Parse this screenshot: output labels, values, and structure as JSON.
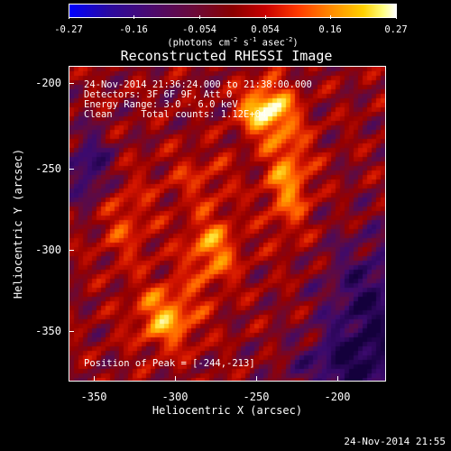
{
  "colorbar": {
    "ticks": [
      "-0.27",
      "-0.16",
      "-0.054",
      "0.054",
      "0.16",
      "0.27"
    ],
    "units_prefix": "(photons cm",
    "units_exp1": "-2",
    "units_mid": " s",
    "units_exp2": "-1",
    "units_mid2": " asec",
    "units_exp3": "-2",
    "units_suffix": ")"
  },
  "title": "Reconstructed RHESSI Image",
  "overlay": {
    "line1": "24-Nov-2014 21:36:24.000 to 21:38:00.000",
    "line2": "Detectors: 3F 6F 9F, Att 0",
    "line3": "Energy Range: 3.0 - 6.0 keV",
    "line4": "Clean     Total counts: 1.12E+04",
    "peak": "Position of Peak = [-244,-213]"
  },
  "axes": {
    "xlabel": "Heliocentric X (arcsec)",
    "ylabel": "Heliocentric Y (arcsec)",
    "xticks": [
      "-350",
      "-300",
      "-250",
      "-200"
    ],
    "yticks": [
      "-200",
      "-250",
      "-300",
      "-350"
    ]
  },
  "stamp": "24-Nov-2014 21:55",
  "colormap": "red-temperature",
  "peak_position": [
    -244,
    -213
  ]
}
